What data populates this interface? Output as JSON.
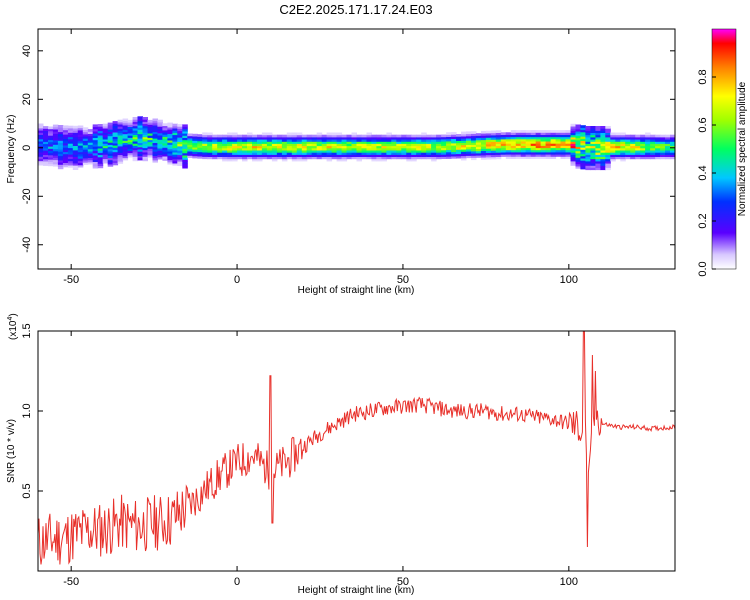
{
  "title": "C2E2.2025.171.17.24.E03",
  "chart_data": [
    {
      "type": "heatmap",
      "xlabel": "Height of straight line (km)",
      "ylabel": "Frequency (Hz)",
      "xlim": [
        -60,
        132
      ],
      "ylim": [
        -50,
        49
      ],
      "xticks": [
        -50,
        0,
        50,
        100
      ],
      "yticks": [
        -40,
        -20,
        0,
        20,
        40
      ],
      "colorbar": {
        "label": "Normalized spectral amplitude",
        "range": [
          0,
          1
        ],
        "ticks": [
          0.0,
          0.2,
          0.4,
          0.6,
          0.8
        ],
        "colormap": "rainbow"
      },
      "ridge": {
        "description_free": true,
        "center_x": [
          -60,
          -50,
          -40,
          -35,
          -30,
          -25,
          -20,
          -10,
          0,
          20,
          40,
          60,
          80,
          100,
          105,
          110,
          132
        ],
        "center_freq": [
          1,
          0,
          1,
          3,
          4,
          3,
          1,
          0,
          0,
          0,
          0,
          0,
          1,
          1,
          0,
          0,
          0
        ],
        "peak_amplitude": [
          0.35,
          0.4,
          0.45,
          0.5,
          0.55,
          0.45,
          0.6,
          0.7,
          0.75,
          0.75,
          0.7,
          0.7,
          0.85,
          0.9,
          0.6,
          0.85,
          0.55
        ]
      }
    },
    {
      "type": "line",
      "xlabel": "Height of straight line (km)",
      "ylabel": "SNR (10 * v/v)",
      "multiplier_label": "(x10",
      "multiplier_exp": "4",
      "xlim": [
        -60,
        132
      ],
      "ylim": [
        0,
        1.5
      ],
      "xticks": [
        -50,
        0,
        50,
        100
      ],
      "yticks": [
        0.5,
        1.0,
        1.5
      ],
      "ytick_labels": [
        "0.5",
        "1.0",
        "1.5"
      ],
      "color": "#e8302a",
      "series": [
        {
          "x": [
            -60,
            -55,
            -50,
            -45,
            -40,
            -35,
            -30,
            -25,
            -20,
            -15,
            -10,
            -5,
            0,
            5,
            10,
            15,
            20,
            25,
            30,
            35,
            40,
            45,
            50,
            55,
            60,
            65,
            70,
            75,
            80,
            85,
            90,
            95,
            100,
            103,
            105,
            106,
            107,
            108,
            110,
            115,
            120,
            125,
            132
          ],
          "y": [
            0.18,
            0.2,
            0.22,
            0.25,
            0.26,
            0.3,
            0.28,
            0.3,
            0.32,
            0.4,
            0.5,
            0.6,
            0.68,
            0.72,
            0.62,
            0.68,
            0.78,
            0.86,
            0.92,
            0.98,
            1.0,
            1.02,
            1.03,
            1.04,
            1.02,
            1.0,
            1.0,
            1.0,
            0.98,
            0.98,
            0.96,
            0.95,
            0.92,
            0.9,
            0.85,
            0.5,
            0.85,
            1.0,
            0.92,
            0.9,
            0.9,
            0.89,
            0.9
          ]
        }
      ],
      "spikes": [
        {
          "x": 10,
          "y": 1.22
        },
        {
          "x": 10.6,
          "y": 0.3
        },
        {
          "x": 104.5,
          "y": 1.52
        },
        {
          "x": 105.5,
          "y": 0.15
        },
        {
          "x": 107,
          "y": 1.35
        },
        {
          "x": 108,
          "y": 1.25
        }
      ]
    }
  ]
}
